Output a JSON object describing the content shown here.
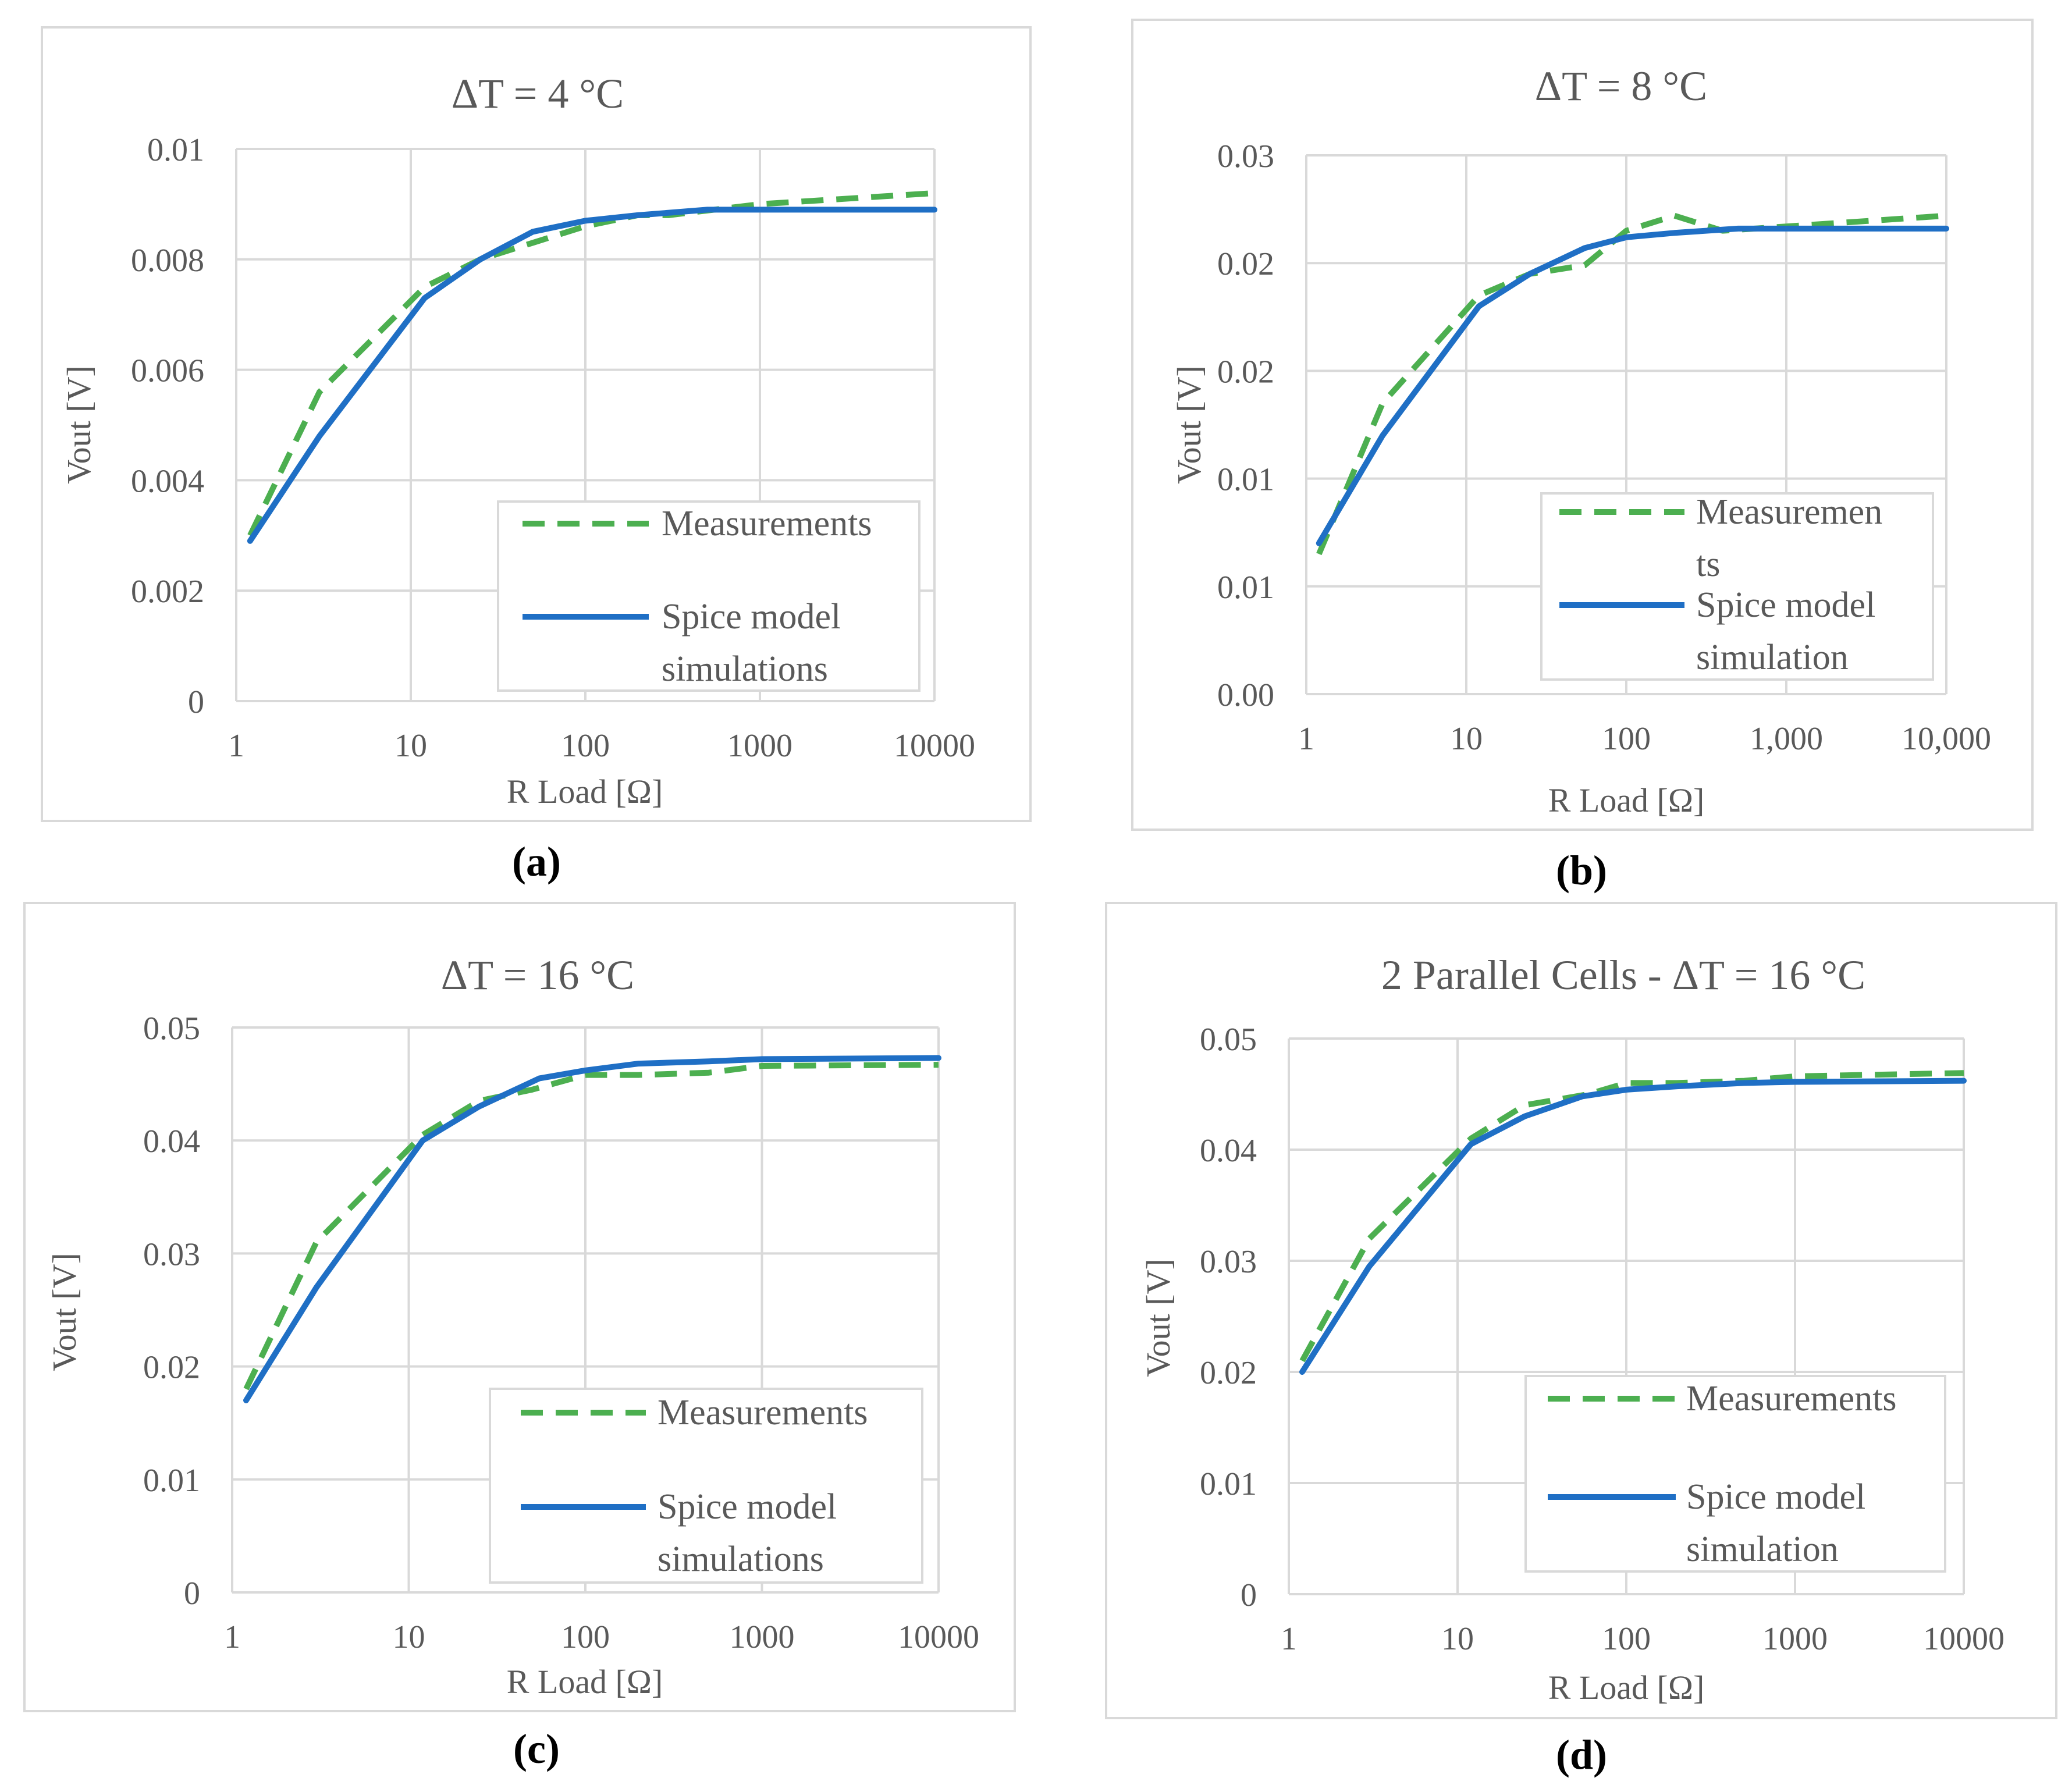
{
  "chart_data": [
    {
      "id": "a",
      "type": "line",
      "title": "ΔT = 4 °C",
      "xlabel": "R Load [Ω]",
      "ylabel": "Vout [V]",
      "xscale": "log",
      "xlim": [
        1,
        10000
      ],
      "ylim": [
        0,
        0.01
      ],
      "xticks": [
        1,
        10,
        100,
        1000,
        10000
      ],
      "xtick_labels": [
        "1",
        "10",
        "100",
        "1000",
        "10000"
      ],
      "yticks": [
        0,
        0.002,
        0.004,
        0.006,
        0.008,
        0.01
      ],
      "ytick_labels": [
        "0",
        "0.002",
        "0.004",
        "0.006",
        "0.008",
        "0.01"
      ],
      "legend_position": "bottom-right",
      "series": [
        {
          "name": "Measurements",
          "legend_lines": [
            "Measurements"
          ],
          "style": "dashed",
          "color": "#4caf50",
          "x": [
            1.2,
            3,
            12,
            25,
            50,
            100,
            200,
            300,
            1000,
            10000
          ],
          "y": [
            0.003,
            0.0056,
            0.0075,
            0.008,
            0.0083,
            0.0086,
            0.0088,
            0.0088,
            0.009,
            0.0092
          ]
        },
        {
          "name": "Spice model simulations",
          "legend_lines": [
            "Spice model",
            "simulations"
          ],
          "style": "solid",
          "color": "#1f6fc5",
          "x": [
            1.2,
            3,
            12,
            25,
            50,
            100,
            200,
            500,
            1000,
            10000
          ],
          "y": [
            0.0029,
            0.0048,
            0.0073,
            0.008,
            0.0085,
            0.0087,
            0.0088,
            0.0089,
            0.0089,
            0.0089
          ]
        }
      ]
    },
    {
      "id": "b",
      "type": "line",
      "title": "ΔT = 8 °C",
      "xlabel": "R Load [Ω]",
      "ylabel": "Vout [V]",
      "xscale": "log",
      "xlim": [
        1,
        10000
      ],
      "ylim": [
        0,
        0.025
      ],
      "xticks": [
        1,
        10,
        100,
        1000,
        10000
      ],
      "xtick_labels": [
        "1",
        "10",
        "100",
        "1,000",
        "10,000"
      ],
      "yticks": [
        0,
        0.005,
        0.01,
        0.015,
        0.02,
        0.025
      ],
      "ytick_labels": [
        "0.00",
        "0.01",
        "0.01",
        "0.02",
        "0.02",
        "0.03"
      ],
      "legend_position": "bottom-right",
      "series": [
        {
          "name": "Measurements",
          "legend_lines": [
            "Measuremen",
            "ts"
          ],
          "style": "dashed",
          "color": "#4caf50",
          "x": [
            1.2,
            3,
            12,
            25,
            55,
            100,
            200,
            400,
            1000,
            10000
          ],
          "y": [
            0.0065,
            0.0135,
            0.0185,
            0.0195,
            0.0199,
            0.0215,
            0.0222,
            0.0215,
            0.0217,
            0.0222
          ]
        },
        {
          "name": "Spice model simulation",
          "legend_lines": [
            "Spice model",
            "simulation"
          ],
          "style": "solid",
          "color": "#1f6fc5",
          "x": [
            1.2,
            3,
            12,
            25,
            55,
            100,
            200,
            500,
            1000,
            10000
          ],
          "y": [
            0.007,
            0.012,
            0.018,
            0.0195,
            0.0207,
            0.0212,
            0.0214,
            0.0216,
            0.0216,
            0.0216
          ]
        }
      ]
    },
    {
      "id": "c",
      "type": "line",
      "title": "ΔT = 16 °C",
      "xlabel": "R Load [Ω]",
      "ylabel": "Vout [V]",
      "xscale": "log",
      "xlim": [
        1,
        10000
      ],
      "ylim": [
        0,
        0.05
      ],
      "xticks": [
        1,
        10,
        100,
        1000,
        10000
      ],
      "xtick_labels": [
        "1",
        "10",
        "100",
        "1000",
        "10000"
      ],
      "yticks": [
        0,
        0.01,
        0.02,
        0.03,
        0.04,
        0.05
      ],
      "ytick_labels": [
        "0",
        "0.01",
        "0.02",
        "0.03",
        "0.04",
        "0.05"
      ],
      "legend_position": "bottom-right",
      "series": [
        {
          "name": "Measurements",
          "legend_lines": [
            "Measurements"
          ],
          "style": "dashed",
          "color": "#4caf50",
          "x": [
            1.2,
            3,
            12,
            25,
            50,
            100,
            200,
            500,
            1000,
            10000
          ],
          "y": [
            0.018,
            0.031,
            0.0405,
            0.0435,
            0.0445,
            0.0458,
            0.0458,
            0.046,
            0.0466,
            0.0467
          ]
        },
        {
          "name": "Spice model simulations",
          "legend_lines": [
            "Spice model",
            "simulations"
          ],
          "style": "solid",
          "color": "#1f6fc5",
          "x": [
            1.2,
            3,
            12,
            25,
            55,
            100,
            200,
            500,
            1000,
            10000
          ],
          "y": [
            0.017,
            0.027,
            0.04,
            0.043,
            0.0455,
            0.0462,
            0.0468,
            0.047,
            0.0472,
            0.0473
          ]
        }
      ]
    },
    {
      "id": "d",
      "type": "line",
      "title": "2 Parallel Cells - ΔT = 16 °C",
      "xlabel": "R Load [Ω]",
      "ylabel": "Vout [V]",
      "xscale": "log",
      "xlim": [
        1,
        10000
      ],
      "ylim": [
        0,
        0.05
      ],
      "xticks": [
        1,
        10,
        100,
        1000,
        10000
      ],
      "xtick_labels": [
        "1",
        "10",
        "100",
        "1000",
        "10000"
      ],
      "yticks": [
        0,
        0.01,
        0.02,
        0.03,
        0.04,
        0.05
      ],
      "ytick_labels": [
        "0",
        "0.01",
        "0.02",
        "0.03",
        "0.04",
        "0.05"
      ],
      "legend_position": "bottom-right",
      "series": [
        {
          "name": "Measurements",
          "legend_lines": [
            "Measurements"
          ],
          "style": "dashed",
          "color": "#4caf50",
          "x": [
            1.2,
            3,
            12,
            25,
            60,
            100,
            200,
            500,
            1000,
            10000
          ],
          "y": [
            0.021,
            0.032,
            0.041,
            0.044,
            0.045,
            0.046,
            0.046,
            0.0462,
            0.0466,
            0.0469
          ]
        },
        {
          "name": "Spice model simulation",
          "legend_lines": [
            "Spice model",
            "simulation"
          ],
          "style": "solid",
          "color": "#1f6fc5",
          "x": [
            1.2,
            3,
            12,
            25,
            55,
            100,
            200,
            500,
            1000,
            10000
          ],
          "y": [
            0.02,
            0.0295,
            0.0405,
            0.043,
            0.0448,
            0.0454,
            0.0457,
            0.046,
            0.0461,
            0.0462
          ]
        }
      ]
    }
  ],
  "captions": {
    "a": "(a)",
    "b": "(b)",
    "c": "(c)",
    "d": "(d)"
  }
}
